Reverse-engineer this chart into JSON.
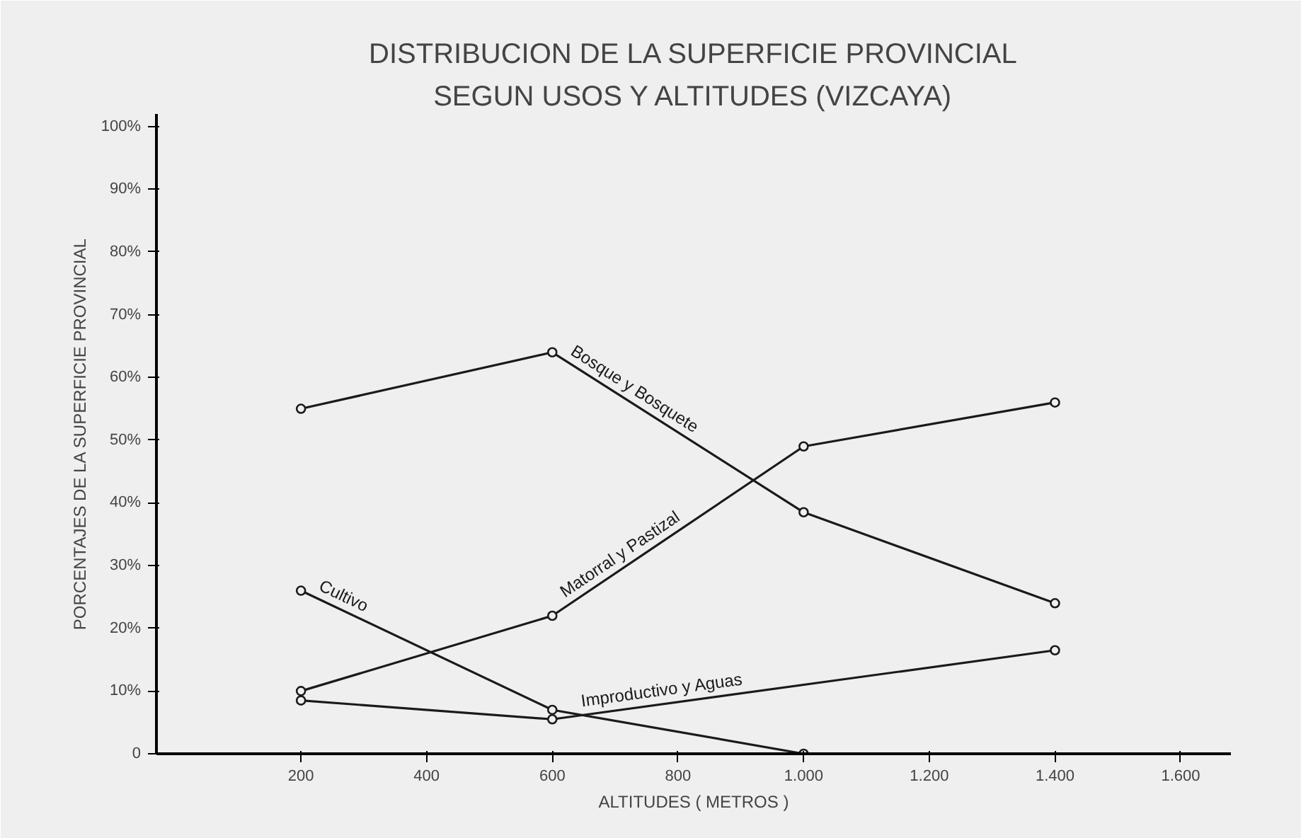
{
  "chart_data": {
    "type": "line",
    "title": "DISTRIBUCION DE LA SUPERFICIE PROVINCIAL",
    "subtitle": "SEGUN USOS Y ALTITUDES (VIZCAYA)",
    "xlabel": "ALTITUDES ( METROS )",
    "ylabel": "PORCENTAJES DE LA SUPERFICIE PROVINCIAL",
    "x": [
      200,
      600,
      1000,
      1400
    ],
    "series": [
      {
        "name": "Bosque y Bosquete",
        "color": "#1a1a1a",
        "values": [
          55,
          64,
          38.5,
          24
        ]
      },
      {
        "name": "Matorral y Pastizal",
        "color": "#1a1a1a",
        "values": [
          10,
          22,
          49,
          56
        ]
      },
      {
        "name": "Cultivo",
        "color": "#1a1a1a",
        "x": [
          200,
          600,
          1000
        ],
        "values": [
          26,
          7,
          0
        ]
      },
      {
        "name": "Improductivo y Aguas",
        "color": "#1a1a1a",
        "x": [
          200,
          600,
          1400
        ],
        "values": [
          8.5,
          5.5,
          16.5
        ]
      }
    ],
    "xlim": [
      -30,
      1680
    ],
    "ylim": [
      0,
      102
    ],
    "xticks": [
      200,
      400,
      600,
      800,
      {
        "value": 1000,
        "label": "1.000"
      },
      {
        "value": 1200,
        "label": "1.200"
      },
      {
        "value": 1400,
        "label": "1.400"
      },
      {
        "value": 1600,
        "label": "1.600"
      }
    ],
    "yticks": [
      0,
      {
        "value": 10,
        "label": "10%"
      },
      {
        "value": 20,
        "label": "20%"
      },
      {
        "value": 30,
        "label": "30%"
      },
      {
        "value": 40,
        "label": "40%"
      },
      {
        "value": 50,
        "label": "50%"
      },
      {
        "value": 60,
        "label": "60%"
      },
      {
        "value": 70,
        "label": "70%"
      },
      {
        "value": 80,
        "label": "80%"
      },
      {
        "value": 90,
        "label": "90%"
      },
      {
        "value": 100,
        "label": "100%"
      }
    ],
    "grid": false,
    "marker": "circle",
    "line_style": "solid"
  }
}
